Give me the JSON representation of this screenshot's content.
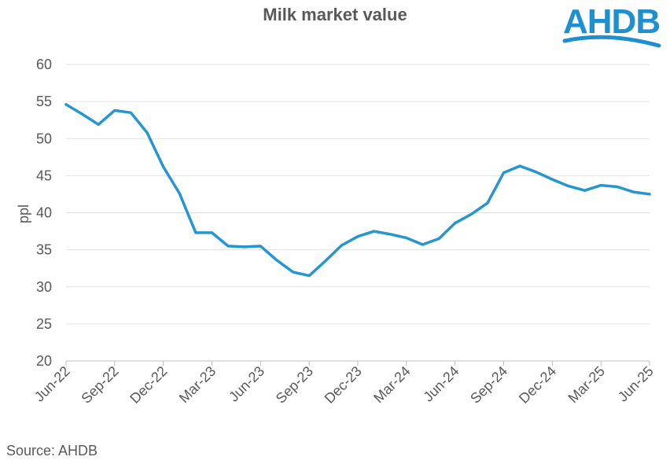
{
  "header": {
    "title": "Milk market value"
  },
  "logo": {
    "text": "AHDB",
    "color": "#1e8fcf"
  },
  "footer": {
    "source": "Source: AHDB"
  },
  "chart_data": {
    "type": "line",
    "title": "Milk market value",
    "xlabel": "",
    "ylabel": "ppl",
    "ylim": [
      20,
      60
    ],
    "yticks": [
      20,
      25,
      30,
      35,
      40,
      45,
      50,
      55,
      60
    ],
    "grid": true,
    "line_color": "#2596cf",
    "x": [
      "Jun-22",
      "Jul-22",
      "Aug-22",
      "Sep-22",
      "Oct-22",
      "Nov-22",
      "Dec-22",
      "Jan-23",
      "Feb-23",
      "Mar-23",
      "Apr-23",
      "May-23",
      "Jun-23",
      "Jul-23",
      "Aug-23",
      "Sep-23",
      "Oct-23",
      "Nov-23",
      "Dec-23",
      "Jan-24",
      "Feb-24",
      "Mar-24",
      "Apr-24",
      "May-24",
      "Jun-24",
      "Jul-24",
      "Aug-24",
      "Sep-24",
      "Oct-24",
      "Nov-24",
      "Dec-24",
      "Jan-25",
      "Feb-25",
      "Mar-25",
      "Apr-25",
      "May-25",
      "Jun-25"
    ],
    "xtick_labels": [
      "Jun-22",
      "Sep-22",
      "Dec-22",
      "Mar-23",
      "Jun-23",
      "Sep-23",
      "Dec-23",
      "Mar-24",
      "Jun-24",
      "Sep-24",
      "Dec-24",
      "Mar-25",
      "Jun-25"
    ],
    "series": [
      {
        "values": [
          54.6,
          53.3,
          51.9,
          53.8,
          53.5,
          50.8,
          46.2,
          42.6,
          37.3,
          37.3,
          35.5,
          35.4,
          35.5,
          33.6,
          32.0,
          31.5,
          33.5,
          35.6,
          36.8,
          37.5,
          37.1,
          36.6,
          35.7,
          36.5,
          38.6,
          39.8,
          41.3,
          45.4,
          46.3,
          45.5,
          44.5,
          43.6,
          43.0,
          43.7,
          43.5,
          42.8,
          42.5
        ]
      }
    ]
  }
}
